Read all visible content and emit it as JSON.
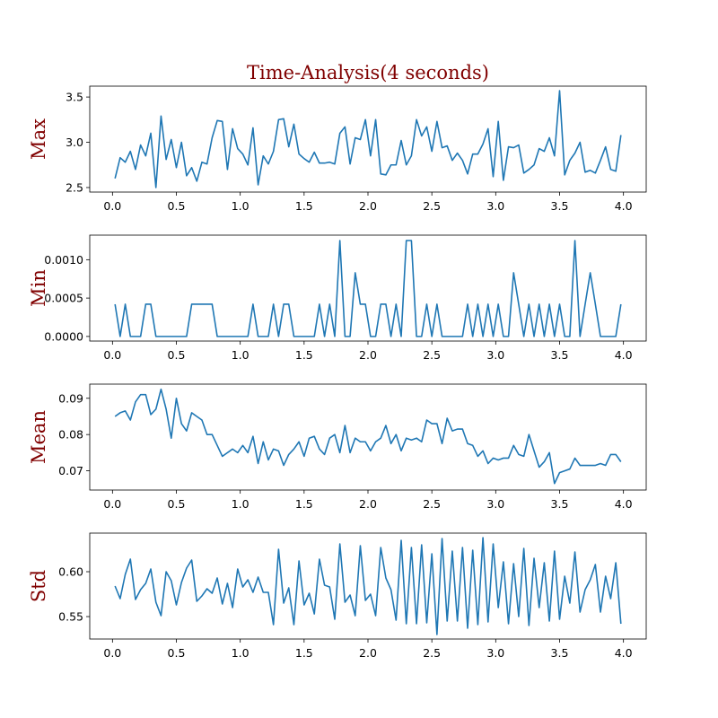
{
  "chart_data": [
    {
      "type": "line",
      "title": "Time-Analysis(4 seconds)",
      "ylabel": "Max",
      "color": "#1f77b4",
      "x": [
        0.02,
        0.06,
        0.1,
        0.14,
        0.18,
        0.22,
        0.26,
        0.3,
        0.34,
        0.38,
        0.42,
        0.46,
        0.5,
        0.54,
        0.58,
        0.62,
        0.66,
        0.7,
        0.74,
        0.78,
        0.82,
        0.86,
        0.9,
        0.94,
        0.98,
        1.02,
        1.06,
        1.1,
        1.14,
        1.18,
        1.22,
        1.26,
        1.3,
        1.34,
        1.38,
        1.42,
        1.46,
        1.5,
        1.54,
        1.58,
        1.62,
        1.66,
        1.7,
        1.74,
        1.78,
        1.82,
        1.86,
        1.9,
        1.94,
        1.98,
        2.02,
        2.06,
        2.1,
        2.14,
        2.18,
        2.22,
        2.26,
        2.3,
        2.34,
        2.38,
        2.42,
        2.46,
        2.5,
        2.54,
        2.58,
        2.62,
        2.66,
        2.7,
        2.74,
        2.78,
        2.82,
        2.86,
        2.9,
        2.94,
        2.98,
        3.02,
        3.06,
        3.1,
        3.14,
        3.18,
        3.22,
        3.26,
        3.3,
        3.34,
        3.38,
        3.42,
        3.46,
        3.5,
        3.54,
        3.58,
        3.62,
        3.66,
        3.7,
        3.74,
        3.78,
        3.82,
        3.86,
        3.9,
        3.94,
        3.98
      ],
      "values": [
        2.6,
        2.83,
        2.78,
        2.9,
        2.7,
        2.97,
        2.85,
        3.1,
        2.5,
        3.29,
        2.81,
        3.03,
        2.72,
        3.0,
        2.63,
        2.72,
        2.57,
        2.78,
        2.76,
        3.05,
        3.24,
        3.23,
        2.7,
        3.15,
        2.93,
        2.87,
        2.75,
        3.16,
        2.53,
        2.85,
        2.76,
        2.9,
        3.25,
        3.26,
        2.95,
        3.2,
        2.87,
        2.82,
        2.78,
        2.89,
        2.77,
        2.77,
        2.78,
        2.76,
        3.1,
        3.17,
        2.76,
        3.05,
        3.03,
        3.25,
        2.85,
        3.25,
        2.65,
        2.64,
        2.75,
        2.75,
        3.02,
        2.75,
        2.85,
        3.25,
        3.07,
        3.17,
        2.9,
        3.23,
        2.94,
        2.96,
        2.8,
        2.88,
        2.8,
        2.65,
        2.87,
        2.87,
        2.98,
        3.15,
        2.62,
        3.23,
        2.58,
        2.95,
        2.94,
        2.97,
        2.66,
        2.7,
        2.75,
        2.93,
        2.9,
        3.05,
        2.85,
        3.57,
        2.64,
        2.8,
        2.88,
        3.0,
        2.67,
        2.69,
        2.66,
        2.8,
        2.95,
        2.7,
        2.68,
        3.08
      ],
      "xlim": [
        -0.178,
        4.178
      ],
      "ylim": [
        2.45,
        3.62
      ],
      "xticks": [
        {
          "value": 0,
          "label": "0.0"
        },
        0.5,
        {
          "value": 1,
          "label": "1.0"
        },
        1.5,
        {
          "value": 2,
          "label": "2.0"
        },
        2.5,
        {
          "value": 3,
          "label": "3.0"
        },
        3.5,
        {
          "value": 4,
          "label": "4.0"
        }
      ],
      "yticks": [
        2.5,
        {
          "value": 3,
          "label": "3.0"
        },
        3.5
      ]
    },
    {
      "type": "line",
      "ylabel": "Min",
      "color": "#1f77b4",
      "x": [
        0.02,
        0.06,
        0.1,
        0.14,
        0.18,
        0.22,
        0.26,
        0.3,
        0.34,
        0.38,
        0.42,
        0.46,
        0.5,
        0.54,
        0.58,
        0.62,
        0.66,
        0.7,
        0.74,
        0.78,
        0.82,
        0.86,
        0.9,
        0.94,
        0.98,
        1.02,
        1.06,
        1.1,
        1.14,
        1.18,
        1.22,
        1.26,
        1.3,
        1.34,
        1.38,
        1.42,
        1.46,
        1.5,
        1.54,
        1.58,
        1.62,
        1.66,
        1.7,
        1.74,
        1.78,
        1.82,
        1.86,
        1.9,
        1.94,
        1.98,
        2.02,
        2.06,
        2.1,
        2.14,
        2.18,
        2.22,
        2.26,
        2.3,
        2.34,
        2.38,
        2.42,
        2.46,
        2.5,
        2.54,
        2.58,
        2.62,
        2.66,
        2.7,
        2.74,
        2.78,
        2.82,
        2.86,
        2.9,
        2.94,
        2.98,
        3.02,
        3.06,
        3.1,
        3.14,
        3.18,
        3.22,
        3.26,
        3.3,
        3.34,
        3.38,
        3.42,
        3.46,
        3.5,
        3.54,
        3.58,
        3.62,
        3.66,
        3.7,
        3.74,
        3.78,
        3.82,
        3.86,
        3.9,
        3.94,
        3.98
      ],
      "values": [
        0.00042,
        0,
        0.00042,
        0,
        0,
        0,
        0.00042,
        0.00042,
        0,
        0,
        0,
        0,
        0,
        0,
        0,
        0.00042,
        0.00042,
        0.00042,
        0.00042,
        0.00042,
        0,
        0,
        0,
        0,
        0,
        0,
        0,
        0.00042,
        0,
        0,
        0,
        0.00042,
        0,
        0.00042,
        0.00042,
        0,
        0,
        0,
        0,
        0,
        0.00042,
        0,
        0.00042,
        0,
        0.00125,
        0,
        0,
        0.00083,
        0.00042,
        0.00042,
        0,
        0,
        0.00042,
        0.00042,
        0,
        0.00042,
        0,
        0.00125,
        0.00125,
        0,
        0,
        0.00042,
        0,
        0.00042,
        0,
        0,
        0,
        0,
        0,
        0.00042,
        0,
        0.00042,
        0,
        0.00042,
        0,
        0.00042,
        0,
        0,
        0.00083,
        0.00042,
        0,
        0.00042,
        0,
        0.00042,
        0,
        0.00042,
        0,
        0.00042,
        0,
        0,
        0.00125,
        0,
        0.00042,
        0.00083,
        0.00042,
        0,
        0,
        0,
        0,
        0.00042
      ],
      "xlim": [
        -0.178,
        4.178
      ],
      "ylim": [
        -6e-05,
        0.00132
      ],
      "xticks": [
        {
          "value": 0,
          "label": "0.0"
        },
        0.5,
        {
          "value": 1,
          "label": "1.0"
        },
        1.5,
        {
          "value": 2,
          "label": "2.0"
        },
        2.5,
        {
          "value": 3,
          "label": "3.0"
        },
        3.5,
        {
          "value": 4,
          "label": "4.0"
        }
      ],
      "yticks": [
        {
          "value": 0,
          "label": "0.0000"
        },
        {
          "value": 0.0005,
          "label": "0.0005"
        },
        {
          "value": 0.001,
          "label": "0.0010"
        }
      ]
    },
    {
      "type": "line",
      "ylabel": "Mean",
      "color": "#1f77b4",
      "x": [
        0.02,
        0.06,
        0.1,
        0.14,
        0.18,
        0.22,
        0.26,
        0.3,
        0.34,
        0.38,
        0.42,
        0.46,
        0.5,
        0.54,
        0.58,
        0.62,
        0.66,
        0.7,
        0.74,
        0.78,
        0.82,
        0.86,
        0.9,
        0.94,
        0.98,
        1.02,
        1.06,
        1.1,
        1.14,
        1.18,
        1.22,
        1.26,
        1.3,
        1.34,
        1.38,
        1.42,
        1.46,
        1.5,
        1.54,
        1.58,
        1.62,
        1.66,
        1.7,
        1.74,
        1.78,
        1.82,
        1.86,
        1.9,
        1.94,
        1.98,
        2.02,
        2.06,
        2.1,
        2.14,
        2.18,
        2.22,
        2.26,
        2.3,
        2.34,
        2.38,
        2.42,
        2.46,
        2.5,
        2.54,
        2.58,
        2.62,
        2.66,
        2.7,
        2.74,
        2.78,
        2.82,
        2.86,
        2.9,
        2.94,
        2.98,
        3.02,
        3.06,
        3.1,
        3.14,
        3.18,
        3.22,
        3.26,
        3.3,
        3.34,
        3.38,
        3.42,
        3.46,
        3.5,
        3.54,
        3.58,
        3.62,
        3.66,
        3.7,
        3.74,
        3.78,
        3.82,
        3.86,
        3.9,
        3.94,
        3.98
      ],
      "values": [
        0.085,
        0.086,
        0.0865,
        0.084,
        0.089,
        0.091,
        0.091,
        0.0855,
        0.087,
        0.0925,
        0.087,
        0.079,
        0.09,
        0.083,
        0.081,
        0.086,
        0.085,
        0.084,
        0.08,
        0.08,
        0.077,
        0.074,
        0.075,
        0.076,
        0.075,
        0.077,
        0.075,
        0.0795,
        0.072,
        0.078,
        0.073,
        0.076,
        0.0755,
        0.0715,
        0.0745,
        0.076,
        0.078,
        0.074,
        0.079,
        0.0795,
        0.076,
        0.0745,
        0.079,
        0.08,
        0.075,
        0.0825,
        0.075,
        0.079,
        0.078,
        0.078,
        0.0755,
        0.078,
        0.079,
        0.0825,
        0.0775,
        0.08,
        0.0755,
        0.079,
        0.0785,
        0.079,
        0.078,
        0.084,
        0.083,
        0.083,
        0.0775,
        0.0845,
        0.081,
        0.0815,
        0.0815,
        0.0775,
        0.077,
        0.074,
        0.0755,
        0.072,
        0.0735,
        0.073,
        0.0735,
        0.0735,
        0.077,
        0.0745,
        0.074,
        0.08,
        0.0755,
        0.071,
        0.0725,
        0.075,
        0.0665,
        0.0695,
        0.07,
        0.0705,
        0.0735,
        0.0715,
        0.0715,
        0.0715,
        0.0715,
        0.072,
        0.0715,
        0.0745,
        0.0745,
        0.0725
      ],
      "xlim": [
        -0.178,
        4.178
      ],
      "ylim": [
        0.0647,
        0.0939
      ],
      "xticks": [
        {
          "value": 0,
          "label": "0.0"
        },
        0.5,
        {
          "value": 1,
          "label": "1.0"
        },
        1.5,
        {
          "value": 2,
          "label": "2.0"
        },
        2.5,
        {
          "value": 3,
          "label": "3.0"
        },
        3.5,
        {
          "value": 4,
          "label": "4.0"
        }
      ],
      "yticks": [
        0.07,
        0.08,
        0.09
      ]
    },
    {
      "type": "line",
      "ylabel": "Std",
      "color": "#1f77b4",
      "x": [
        0.02,
        0.06,
        0.1,
        0.14,
        0.18,
        0.22,
        0.26,
        0.3,
        0.34,
        0.38,
        0.42,
        0.46,
        0.5,
        0.54,
        0.58,
        0.62,
        0.66,
        0.7,
        0.74,
        0.78,
        0.82,
        0.86,
        0.9,
        0.94,
        0.98,
        1.02,
        1.06,
        1.1,
        1.14,
        1.18,
        1.22,
        1.26,
        1.3,
        1.34,
        1.38,
        1.42,
        1.46,
        1.5,
        1.54,
        1.58,
        1.62,
        1.66,
        1.7,
        1.74,
        1.78,
        1.82,
        1.86,
        1.9,
        1.94,
        1.98,
        2.02,
        2.06,
        2.1,
        2.14,
        2.18,
        2.22,
        2.26,
        2.3,
        2.34,
        2.38,
        2.42,
        2.46,
        2.5,
        2.54,
        2.58,
        2.62,
        2.66,
        2.7,
        2.74,
        2.78,
        2.82,
        2.86,
        2.9,
        2.94,
        2.98,
        3.02,
        3.06,
        3.1,
        3.14,
        3.18,
        3.22,
        3.26,
        3.3,
        3.34,
        3.38,
        3.42,
        3.46,
        3.5,
        3.54,
        3.58,
        3.62,
        3.66,
        3.7,
        3.74,
        3.78,
        3.82,
        3.86,
        3.9,
        3.94,
        3.98
      ],
      "values": [
        0.584,
        0.57,
        0.597,
        0.614,
        0.569,
        0.58,
        0.587,
        0.603,
        0.566,
        0.551,
        0.6,
        0.59,
        0.563,
        0.588,
        0.604,
        0.613,
        0.567,
        0.573,
        0.581,
        0.576,
        0.593,
        0.564,
        0.587,
        0.56,
        0.603,
        0.583,
        0.591,
        0.577,
        0.594,
        0.577,
        0.577,
        0.541,
        0.625,
        0.565,
        0.582,
        0.541,
        0.612,
        0.563,
        0.576,
        0.553,
        0.614,
        0.585,
        0.583,
        0.547,
        0.631,
        0.566,
        0.574,
        0.551,
        0.629,
        0.568,
        0.575,
        0.551,
        0.627,
        0.593,
        0.58,
        0.546,
        0.635,
        0.542,
        0.627,
        0.542,
        0.63,
        0.543,
        0.62,
        0.53,
        0.637,
        0.545,
        0.623,
        0.545,
        0.627,
        0.537,
        0.624,
        0.541,
        0.638,
        0.544,
        0.631,
        0.56,
        0.611,
        0.542,
        0.609,
        0.55,
        0.626,
        0.54,
        0.615,
        0.56,
        0.61,
        0.545,
        0.623,
        0.547,
        0.595,
        0.565,
        0.622,
        0.555,
        0.58,
        0.591,
        0.608,
        0.555,
        0.595,
        0.57,
        0.61,
        0.542
      ],
      "xlim": [
        -0.178,
        4.178
      ],
      "ylim": [
        0.525,
        0.643
      ],
      "xticks": [
        {
          "value": 0,
          "label": "0.0"
        },
        0.5,
        {
          "value": 1,
          "label": "1.0"
        },
        1.5,
        {
          "value": 2,
          "label": "2.0"
        },
        2.5,
        {
          "value": 3,
          "label": "3.0"
        },
        3.5,
        {
          "value": 4,
          "label": "4.0"
        }
      ],
      "yticks": [
        0.55,
        {
          "value": 0.6,
          "label": "0.60"
        }
      ]
    }
  ]
}
